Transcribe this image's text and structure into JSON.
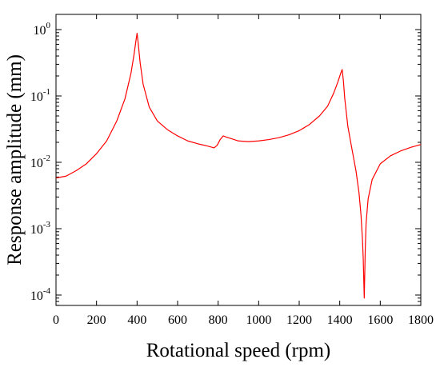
{
  "chart_data": {
    "type": "line",
    "xlabel": "Rotational speed (rpm)",
    "ylabel": "Response amplitude (mm)",
    "xlim": [
      0,
      1800
    ],
    "ylim": [
      8e-05,
      1.5
    ],
    "yscale": "log",
    "grid": false,
    "x_ticks": [
      0,
      200,
      400,
      600,
      800,
      1000,
      1200,
      1400,
      1600,
      1800
    ],
    "x_tick_labels": [
      "0",
      "200",
      "400",
      "600",
      "800",
      "1000",
      "1200",
      "1400",
      "1600",
      "1800"
    ],
    "y_ticks": [
      {
        "value": 1,
        "base": "10",
        "exp": "0"
      },
      {
        "value": 0.1,
        "base": "10",
        "exp": "-1"
      },
      {
        "value": 0.01,
        "base": "10",
        "exp": "-2"
      },
      {
        "value": 0.001,
        "base": "10",
        "exp": "-3"
      },
      {
        "value": 0.0001,
        "base": "10",
        "exp": "-4"
      }
    ],
    "series": [
      {
        "color": "#ff0000",
        "x": [
          0,
          50,
          100,
          150,
          200,
          250,
          300,
          340,
          370,
          385,
          395,
          400,
          405,
          415,
          430,
          460,
          500,
          550,
          600,
          650,
          700,
          750,
          780,
          795,
          810,
          825,
          840,
          870,
          900,
          950,
          1000,
          1050,
          1100,
          1150,
          1200,
          1250,
          1300,
          1340,
          1370,
          1390,
          1405,
          1412,
          1418,
          1425,
          1440,
          1460,
          1480,
          1495,
          1505,
          1512,
          1516,
          1519,
          1521,
          1523,
          1526,
          1530,
          1540,
          1560,
          1600,
          1650,
          1700,
          1750,
          1800
        ],
        "y": [
          0.0058,
          0.0062,
          0.0075,
          0.0095,
          0.0135,
          0.021,
          0.042,
          0.09,
          0.22,
          0.42,
          0.7,
          0.88,
          0.65,
          0.32,
          0.15,
          0.068,
          0.042,
          0.031,
          0.025,
          0.021,
          0.019,
          0.0175,
          0.0165,
          0.018,
          0.022,
          0.025,
          0.024,
          0.0225,
          0.021,
          0.0205,
          0.021,
          0.022,
          0.0235,
          0.026,
          0.03,
          0.037,
          0.05,
          0.07,
          0.11,
          0.16,
          0.22,
          0.25,
          0.17,
          0.09,
          0.035,
          0.016,
          0.0075,
          0.0035,
          0.0016,
          0.0007,
          0.00035,
          0.00015,
          9e-05,
          0.00018,
          0.0005,
          0.0012,
          0.0028,
          0.0055,
          0.0095,
          0.0125,
          0.0148,
          0.0168,
          0.0185
        ]
      }
    ]
  }
}
